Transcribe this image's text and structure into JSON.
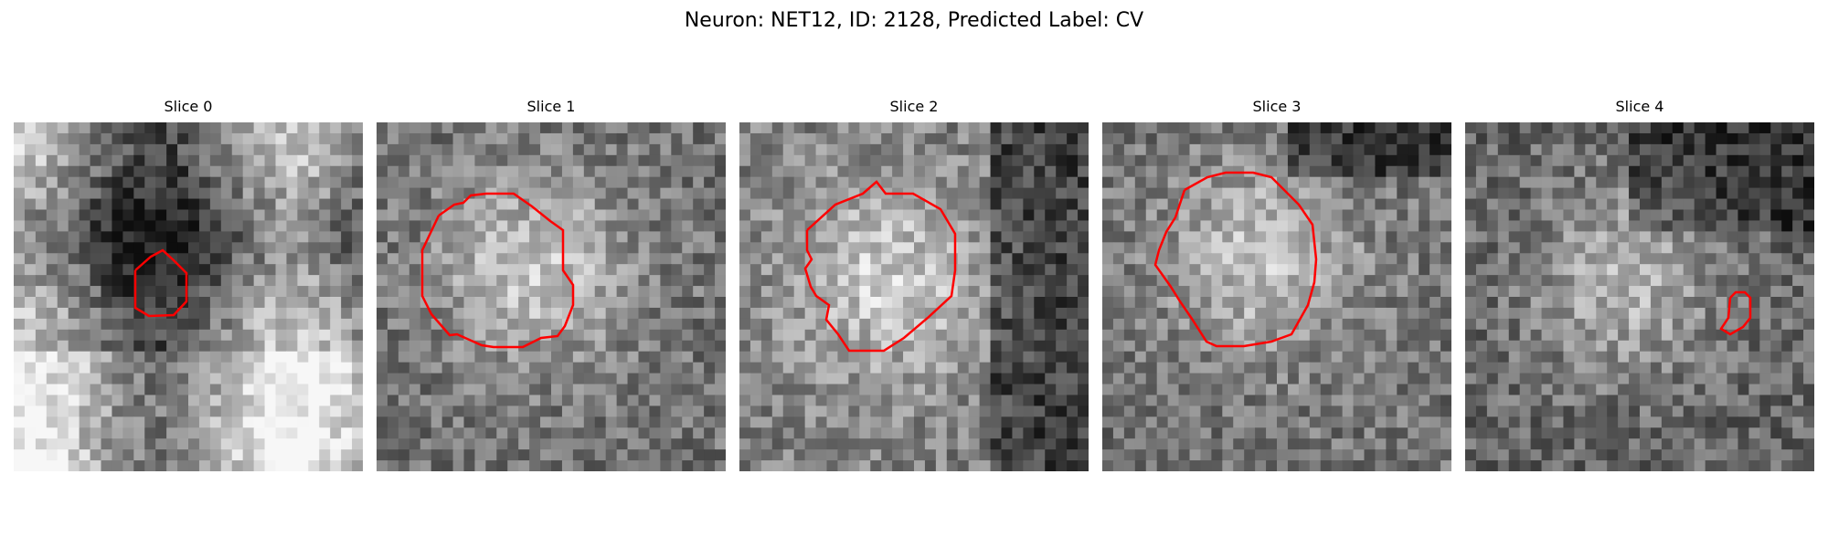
{
  "figure": {
    "title": "Neuron: NET12, ID: 2128, Predicted Label: CV"
  },
  "panels": [
    {
      "title": "Slice 0",
      "contour_color": "#ff0000",
      "image_description": "grayscale microscopy patch with bright textured regions and darker bands",
      "seed": 17
    },
    {
      "title": "Slice 1",
      "contour_color": "#ff0000",
      "image_description": "grayscale microscopy patch with a bright roughly circular region",
      "seed": 29
    },
    {
      "title": "Slice 2",
      "contour_color": "#ff0000",
      "image_description": "grayscale microscopy patch with a bright region enclosed by a polygonal contour",
      "seed": 41
    },
    {
      "title": "Slice 3",
      "contour_color": "#ff0000",
      "image_description": "grayscale microscopy patch with a large bright circular region",
      "seed": 53
    },
    {
      "title": "Slice 4",
      "contour_color": "#ff0000",
      "image_description": "grayscale microscopy patch with dark surrounding and a bright center",
      "seed": 67
    }
  ]
}
